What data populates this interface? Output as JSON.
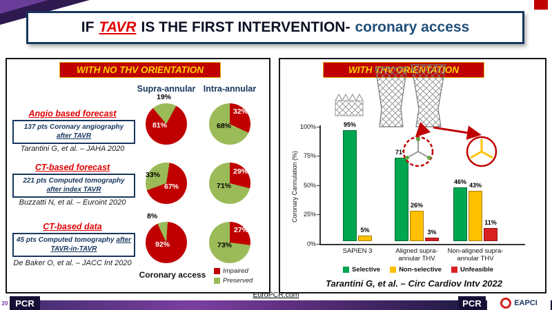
{
  "title": {
    "prefix": "IF",
    "highlight": "TAVR",
    "middle": "IS THE FIRST INTERVENTION-",
    "suffix": "coronary access"
  },
  "left_panel": {
    "banner": "WITH NO THV ORIENTATION",
    "columns": [
      "Supra-annular",
      "Intra-annular"
    ],
    "rows": [
      {
        "heading": "Angio based forecast",
        "box_text": "137 pts Coronary angiography",
        "box_underlined": "after TAVR",
        "citation": "Tarantini G, et al. – JAHA 2020"
      },
      {
        "heading": "CT-based forecast",
        "box_text": "221 pts Computed tomography",
        "box_underlined": "after index TAVR",
        "citation": "Buzzatti N, et al. – Euroint 2020"
      },
      {
        "heading": "CT-based data",
        "box_text": "45 pts Computed tomography",
        "box_underlined": "after TAVR-in-TAVR",
        "citation": "De Baker O, et al. – JACC Int 2020"
      }
    ],
    "axis_label": "Coronary access",
    "legend": [
      {
        "label": "Impaired",
        "color": "#c00000"
      },
      {
        "label": "Preserved",
        "color": "#9bbb59"
      }
    ]
  },
  "pies": {
    "r1s": {
      "from": -40,
      "segments": [
        {
          "color": "#9bbb59",
          "pct": 19
        },
        {
          "color": "#c00000",
          "pct": 81
        }
      ],
      "labels": [
        "19%",
        "81%"
      ]
    },
    "r1i": {
      "from": 0,
      "segments": [
        {
          "color": "#c00000",
          "pct": 32
        },
        {
          "color": "#9bbb59",
          "pct": 68
        }
      ],
      "labels": [
        "32%",
        "68%"
      ]
    },
    "r2s": {
      "from": -110,
      "segments": [
        {
          "color": "#9bbb59",
          "pct": 33
        },
        {
          "color": "#c00000",
          "pct": 67
        }
      ],
      "labels": [
        "33%",
        "67%"
      ]
    },
    "r2i": {
      "from": 0,
      "segments": [
        {
          "color": "#c00000",
          "pct": 29
        },
        {
          "color": "#9bbb59",
          "pct": 71
        }
      ],
      "labels": [
        "29%",
        "71%"
      ]
    },
    "r3s": {
      "from": -25,
      "segments": [
        {
          "color": "#9bbb59",
          "pct": 8
        },
        {
          "color": "#c00000",
          "pct": 92
        }
      ],
      "labels": [
        "8%",
        "92%"
      ]
    },
    "r3i": {
      "from": 0,
      "segments": [
        {
          "color": "#c00000",
          "pct": 27
        },
        {
          "color": "#9bbb59",
          "pct": 73
        }
      ],
      "labels": [
        "27%",
        "73%"
      ]
    }
  },
  "right_panel": {
    "banner": "WITH THV ORIENTATION",
    "citation": "Tarantini G, et al. – Circ Cardiov Intv 2022"
  },
  "bar_chart": {
    "ylabel": "Coronary Cannulation (%)",
    "yticks": [
      "100%",
      "75%",
      "50%",
      "25%",
      "0%"
    ],
    "groups": [
      {
        "label": "SAPIEN 3",
        "bars": [
          {
            "name": "Selective",
            "value": 95,
            "label": "95%"
          },
          {
            "name": "Non-selective",
            "value": 5,
            "label": "5%"
          }
        ]
      },
      {
        "label": "Aligned supra-annular THV",
        "bars": [
          {
            "name": "Selective",
            "value": 71,
            "label": "71%"
          },
          {
            "name": "Non-selective",
            "value": 26,
            "label": "26%"
          },
          {
            "name": "Unfeasible",
            "value": 3,
            "label": "3%"
          }
        ]
      },
      {
        "label": "Non-aligned supra-annular THV",
        "bars": [
          {
            "name": "Selective",
            "value": 46,
            "label": "46%"
          },
          {
            "name": "Non-selective",
            "value": 43,
            "label": "43%"
          },
          {
            "name": "Unfeasible",
            "value": 11,
            "label": "11%"
          }
        ]
      }
    ],
    "legend": [
      {
        "label": "Selective",
        "color": "#00a550"
      },
      {
        "label": "Non-selective",
        "color": "#ffc000"
      },
      {
        "label": "Unfeasible",
        "color": "#d92121"
      }
    ]
  },
  "footer": {
    "link": "EuroPCR.com",
    "year": "20",
    "pcr_left": "PCR",
    "pcr_right": "PCR",
    "eapci": "EAPCI"
  },
  "chart_data": [
    {
      "type": "pie",
      "title": "Angio based forecast (137 pts, JAHA 2020) – Supra-annular coronary access",
      "labels": [
        "Impaired",
        "Preserved"
      ],
      "values": [
        81,
        19
      ]
    },
    {
      "type": "pie",
      "title": "Angio based forecast (137 pts, JAHA 2020) – Intra-annular coronary access",
      "labels": [
        "Impaired",
        "Preserved"
      ],
      "values": [
        32,
        68
      ]
    },
    {
      "type": "pie",
      "title": "CT-based forecast (221 pts, Euroint 2020) – Supra-annular coronary access",
      "labels": [
        "Impaired",
        "Preserved"
      ],
      "values": [
        67,
        33
      ]
    },
    {
      "type": "pie",
      "title": "CT-based forecast (221 pts, Euroint 2020) – Intra-annular coronary access",
      "labels": [
        "Impaired",
        "Preserved"
      ],
      "values": [
        29,
        71
      ]
    },
    {
      "type": "pie",
      "title": "CT-based data (45 pts TAVR-in-TAVR, JACC Int 2020) – Supra-annular coronary access",
      "labels": [
        "Impaired",
        "Preserved"
      ],
      "values": [
        92,
        8
      ]
    },
    {
      "type": "pie",
      "title": "CT-based data (45 pts TAVR-in-TAVR, JACC Int 2020) – Intra-annular coronary access",
      "labels": [
        "Impaired",
        "Preserved"
      ],
      "values": [
        27,
        73
      ]
    },
    {
      "type": "bar",
      "title": "Coronary cannulation with THV orientation (Circ Cardiov Intv 2022)",
      "categories": [
        "SAPIEN 3",
        "Aligned supra-annular THV",
        "Non-aligned supra-annular THV"
      ],
      "series": [
        {
          "name": "Selective",
          "values": [
            95,
            71,
            46
          ]
        },
        {
          "name": "Non-selective",
          "values": [
            5,
            26,
            43
          ]
        },
        {
          "name": "Unfeasible",
          "values": [
            0,
            3,
            11
          ]
        }
      ],
      "xlabel": "",
      "ylabel": "Coronary Cannulation (%)",
      "ylim": [
        0,
        100
      ],
      "grid": false,
      "legend_position": "bottom"
    }
  ]
}
